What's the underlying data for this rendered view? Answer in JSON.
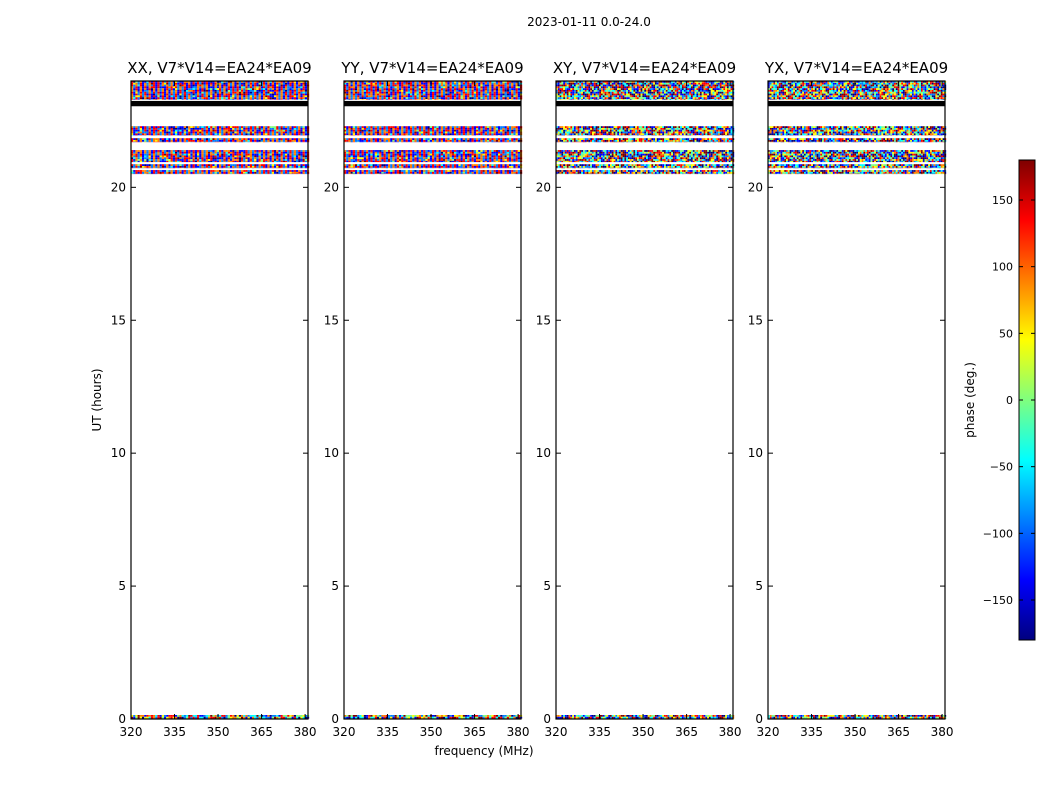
{
  "figure_title": "2023-01-11 0.0-24.0",
  "chart_data": {
    "type": "heatmap",
    "shared": {
      "xlabel": "frequency (MHz)",
      "ylabel": "UT (hours)",
      "xlim": [
        320,
        381
      ],
      "ylim": [
        0,
        24
      ],
      "xticks": [
        320,
        335,
        350,
        365,
        380
      ],
      "yticks": [
        0,
        5,
        10,
        15,
        20
      ],
      "grid": false
    },
    "panels": [
      {
        "title": "XX, V7*V14=EA24*EA09",
        "pattern": "striped"
      },
      {
        "title": "YY, V7*V14=EA24*EA09",
        "pattern": "striped"
      },
      {
        "title": "XY, V7*V14=EA24*EA09",
        "pattern": "noise"
      },
      {
        "title": "YX, V7*V14=EA24*EA09",
        "pattern": "noise"
      }
    ],
    "data_bands_ut": [
      {
        "from": 0.0,
        "to": 0.15
      },
      {
        "from": 20.5,
        "to": 20.65
      },
      {
        "from": 20.72,
        "to": 20.87
      },
      {
        "from": 20.95,
        "to": 21.4
      },
      {
        "from": 21.7,
        "to": 21.85
      },
      {
        "from": 21.95,
        "to": 22.3
      },
      {
        "from": 23.3,
        "to": 24.0
      }
    ],
    "flagged_bands_ut": [
      {
        "from": 23.05,
        "to": 23.25
      }
    ],
    "colorbar": {
      "label": "phase (deg.)",
      "range": [
        -180,
        180
      ],
      "ticks": [
        -150,
        -100,
        -50,
        0,
        50,
        100,
        150
      ],
      "tick_labels": [
        "−150",
        "−100",
        "−50",
        "0",
        "50",
        "100",
        "150"
      ],
      "colormap": "jet"
    }
  },
  "colors": {
    "jet": [
      "#00007f",
      "#0000ff",
      "#007fff",
      "#00ffff",
      "#7fff7f",
      "#ffff00",
      "#ff7f00",
      "#ff0000",
      "#7f0000"
    ]
  }
}
